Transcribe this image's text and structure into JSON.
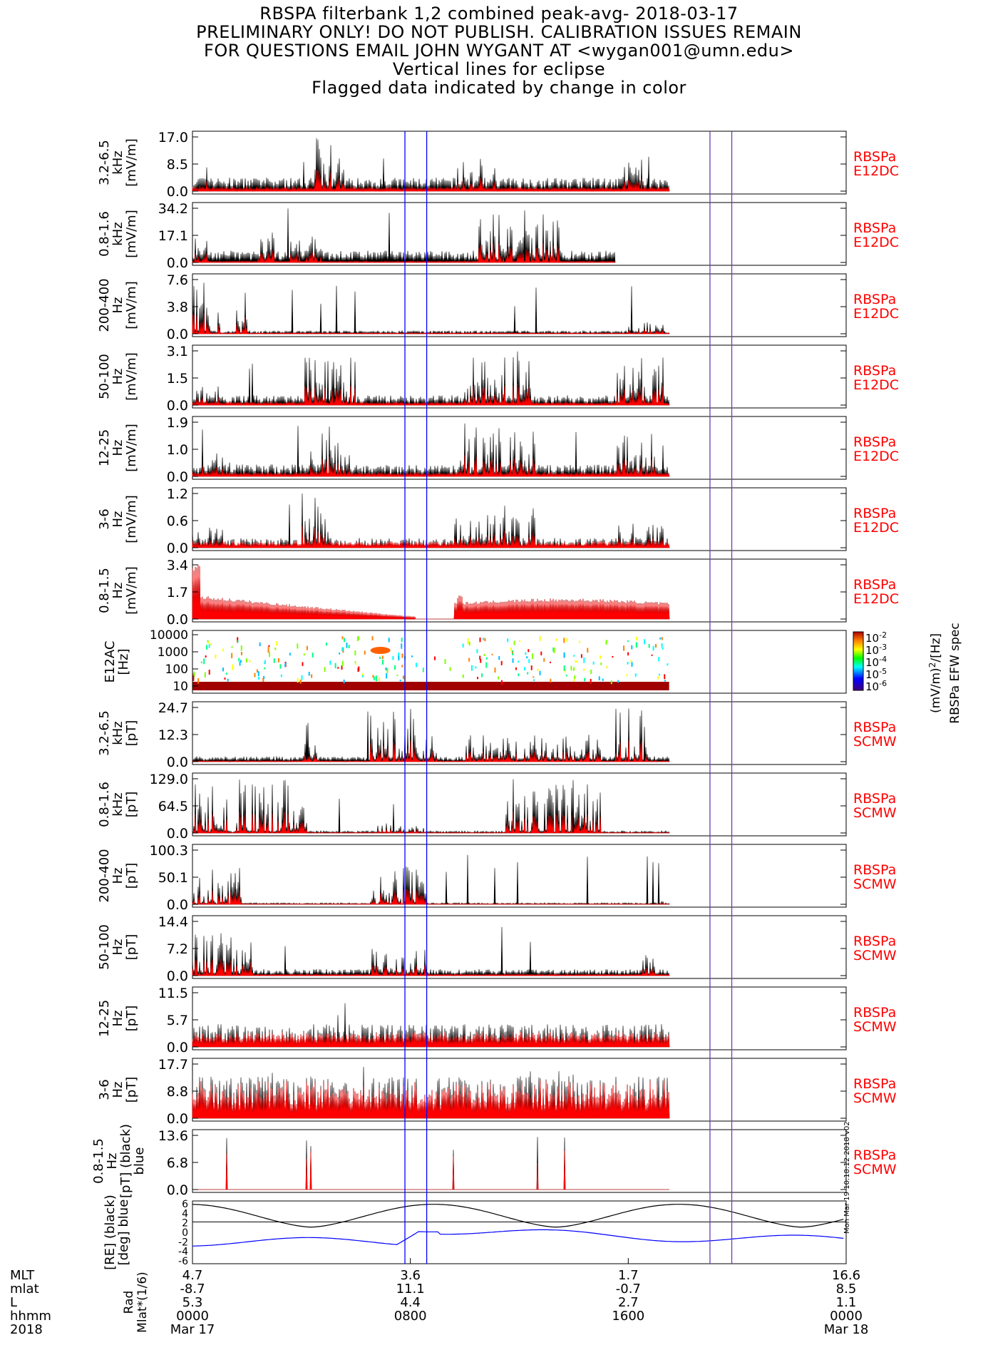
{
  "title_lines": [
    "RBSPA filterbank 1,2 combined peak-avg- 2018-03-17",
    "PRELIMINARY ONLY! DO NOT PUBLISH. CALIBRATION ISSUES REMAIN",
    "FOR QUESTIONS EMAIL JOHN WYGANT AT <wygan001@umn.edu>",
    "Vertical lines for eclipse",
    "Flagged data indicated by change in color"
  ],
  "colors": {
    "peak": "#000000",
    "avg": "#ff0000",
    "eclipse": "#0000ff",
    "eclipse2": "#6a3fb0",
    "mlat": "#0000ff",
    "label": "#ff0000"
  },
  "chart_data": {
    "type": "line",
    "x_axis": {
      "tick_dates": [
        "Mar 17",
        "",
        "",
        "Mar 18"
      ],
      "tick_hhmm": [
        "0000",
        "0800",
        "1600",
        "0000"
      ],
      "tick_hours": [
        0,
        8,
        16,
        24
      ],
      "row_labels": [
        "MLT",
        "mlat",
        "L",
        "hhmm",
        "2018"
      ],
      "orbit_labels": [
        "Rad",
        "Mlat*(1/6)"
      ],
      "MLT": [
        "4.7",
        "3.6",
        "1.7",
        "16.6"
      ],
      "mlat": [
        "-8.7",
        "11.1",
        "-0.7",
        "8.5"
      ],
      "L": [
        "5.3",
        "4.4",
        "2.7",
        "1.1"
      ]
    },
    "eclipse_hours": [
      [
        7.8,
        8.6
      ],
      [
        19.0,
        19.8
      ]
    ],
    "data_end_hour": 17.5,
    "panels": [
      {
        "id": "e1",
        "ylabel": [
          "3.2-6.5",
          "kHz",
          "[mV/m]"
        ],
        "yticks": [
          "0.0",
          "8.5",
          "17.0"
        ],
        "ymax": 17.0,
        "instr": [
          "RBSPa",
          "E12DC"
        ],
        "peak_level": 0.25,
        "avg_level": 0.08,
        "bursts": [
          [
            0.2,
            0.7,
            0.5
          ],
          [
            4.5,
            5.6,
            1.0
          ],
          [
            9.6,
            11.2,
            0.6
          ],
          [
            15.8,
            16.5,
            0.6
          ]
        ],
        "end": 17.5
      },
      {
        "id": "e2",
        "ylabel": [
          "0.8-1.6",
          "kHz",
          "[mV/m]"
        ],
        "yticks": [
          "0.0",
          "17.1",
          "34.2"
        ],
        "ymax": 34.2,
        "instr": [
          "RBSPa",
          "E12DC"
        ],
        "peak_level": 0.22,
        "avg_level": 0.03,
        "bursts": [
          [
            0.0,
            0.6,
            0.9
          ],
          [
            2.4,
            3.0,
            0.6
          ],
          [
            3.6,
            4.8,
            0.6
          ],
          [
            10.5,
            13.5,
            1.0
          ]
        ],
        "end": 15.5
      },
      {
        "id": "e3",
        "ylabel": [
          "200-400",
          "Hz",
          "[mV/m]"
        ],
        "yticks": [
          "0.0",
          "3.8",
          "7.6"
        ],
        "ymax": 7.6,
        "instr": [
          "RBSPa",
          "E12DC"
        ],
        "peak_level": 0.06,
        "avg_level": 0.02,
        "bursts": [
          [
            0.0,
            1.0,
            1.0
          ],
          [
            1.6,
            2.0,
            0.8
          ],
          [
            16.0,
            17.3,
            0.25
          ]
        ],
        "end": 17.5
      },
      {
        "id": "e4",
        "ylabel": [
          "50-100",
          "Hz",
          "[mV/m]"
        ],
        "yticks": [
          "0.0",
          "1.5",
          "3.1"
        ],
        "ymax": 3.1,
        "instr": [
          "RBSPa",
          "E12DC"
        ],
        "peak_level": 0.18,
        "avg_level": 0.06,
        "bursts": [
          [
            0.0,
            1.0,
            0.4
          ],
          [
            4.0,
            6.0,
            0.9
          ],
          [
            9.9,
            12.5,
            1.0
          ],
          [
            15.5,
            17.3,
            0.9
          ]
        ],
        "end": 17.5
      },
      {
        "id": "e5",
        "ylabel": [
          "12-25",
          "Hz",
          "[mV/m]"
        ],
        "yticks": [
          "0.0",
          "1.0",
          "1.9"
        ],
        "ymax": 1.9,
        "instr": [
          "RBSPa",
          "E12DC"
        ],
        "peak_level": 0.22,
        "avg_level": 0.08,
        "bursts": [
          [
            0.0,
            1.5,
            0.5
          ],
          [
            4.0,
            5.8,
            1.0
          ],
          [
            9.8,
            12.6,
            1.0
          ],
          [
            15.5,
            17.0,
            0.8
          ]
        ],
        "end": 17.5
      },
      {
        "id": "e6",
        "ylabel": [
          "3-6",
          "Hz",
          "[mV/m]"
        ],
        "yticks": [
          "0.0",
          "0.6",
          "1.2"
        ],
        "ymax": 1.2,
        "instr": [
          "RBSPa",
          "E12DC"
        ],
        "peak_level": 0.18,
        "avg_level": 0.12,
        "bursts": [
          [
            0.0,
            1.2,
            0.4
          ],
          [
            4.0,
            5.0,
            1.0
          ],
          [
            9.6,
            12.6,
            0.8
          ],
          [
            15.5,
            17.3,
            0.5
          ]
        ],
        "end": 17.5
      },
      {
        "id": "e7",
        "ylabel": [
          "0.8-1.5",
          "Hz",
          "[mV/m]"
        ],
        "yticks": [
          "0.0",
          "1.7",
          "3.4"
        ],
        "ymax": 3.4,
        "instr": [
          "RBSPa",
          "E12DC"
        ],
        "envelope": true,
        "end": 17.5
      },
      {
        "id": "spec",
        "type": "heatmap",
        "ylabel": [
          "E12AC",
          "[Hz]"
        ],
        "yticks": [
          "10",
          "100",
          "1000",
          "10000"
        ],
        "colorbar_ticks": [
          "10",
          "10",
          "10",
          "10",
          "10"
        ],
        "colorbar_exps": [
          "-2",
          "-3",
          "-4",
          "-5",
          "-6"
        ],
        "colorbar_label": "(mV/m)",
        "colorbar_label_sup": "2",
        "colorbar_label_tail": "/[Hz]",
        "side_label": "RBSPa EFW spec",
        "end": 17.5
      },
      {
        "id": "b1",
        "ylabel": [
          "3.2-6.5",
          "kHz",
          "[pT]"
        ],
        "yticks": [
          "0.0",
          "12.3",
          "24.7"
        ],
        "ymax": 24.7,
        "instr": [
          "RBSPa",
          "SCMW"
        ],
        "peak_level": 0.1,
        "avg_level": 0.02,
        "bursts": [
          [
            4.0,
            4.7,
            0.4
          ],
          [
            6.5,
            9.0,
            1.0
          ],
          [
            10.0,
            15.0,
            0.5
          ],
          [
            15.5,
            16.7,
            1.0
          ]
        ],
        "end": 17.5
      },
      {
        "id": "b2",
        "ylabel": [
          "0.8-1.6",
          "kHz",
          "[pT]"
        ],
        "yticks": [
          "0.0",
          "64.5",
          "129.0"
        ],
        "ymax": 129.0,
        "instr": [
          "RBSPa",
          "SCMW"
        ],
        "peak_level": 0.04,
        "avg_level": 0.01,
        "bursts": [
          [
            0.0,
            4.2,
            1.0
          ],
          [
            6.5,
            8.6,
            0.2
          ],
          [
            11.5,
            15.0,
            1.0
          ]
        ],
        "end": 17.5
      },
      {
        "id": "b3",
        "ylabel": [
          "200-400",
          "Hz",
          "[pT]"
        ],
        "yticks": [
          "0.0",
          "50.1",
          "100.3"
        ],
        "ymax": 100.3,
        "instr": [
          "RBSPa",
          "SCMW"
        ],
        "peak_level": 0.03,
        "avg_level": 0.01,
        "bursts": [
          [
            0.0,
            1.8,
            1.0
          ],
          [
            6.5,
            8.6,
            0.7
          ],
          [
            17.0,
            17.5,
            0.15
          ]
        ],
        "end": 17.5
      },
      {
        "id": "b4",
        "ylabel": [
          "50-100",
          "Hz",
          "[pT]"
        ],
        "yticks": [
          "0.0",
          "7.2",
          "14.4"
        ],
        "ymax": 14.4,
        "instr": [
          "RBSPa",
          "SCMW"
        ],
        "peak_level": 0.12,
        "avg_level": 0.03,
        "bursts": [
          [
            0.0,
            2.2,
            0.8
          ],
          [
            6.5,
            8.6,
            0.5
          ],
          [
            16.5,
            17.0,
            0.6
          ]
        ],
        "end": 17.5
      },
      {
        "id": "b5",
        "ylabel": [
          "12-25",
          "Hz",
          "[pT]"
        ],
        "yticks": [
          "0.0",
          "5.7",
          "11.5"
        ],
        "ymax": 11.5,
        "instr": [
          "RBSPa",
          "SCMW"
        ],
        "peak_level": 0.42,
        "avg_level": 0.28,
        "bursts": [],
        "end": 17.5
      },
      {
        "id": "b6",
        "ylabel": [
          "3-6",
          "Hz",
          "[pT]"
        ],
        "yticks": [
          "0.0",
          "8.8",
          "17.7"
        ],
        "ymax": 17.7,
        "instr": [
          "RBSPa",
          "SCMW"
        ],
        "peak_level": 0.78,
        "avg_level": 0.7,
        "bursts": [],
        "end": 17.5
      },
      {
        "id": "b7",
        "ylabel": [
          "0.8-1.5",
          "Hz",
          "[pT] (black)",
          "blue"
        ],
        "yticks": [
          "0.0",
          "6.8",
          "13.6"
        ],
        "ymax": 13.6,
        "instr": [
          "RBSPa",
          "SCMW"
        ],
        "peak_level": 0.0,
        "avg_level": 0.72,
        "bursts": [],
        "end": 17.5
      },
      {
        "id": "orbit",
        "type": "orbit",
        "ylabel": [
          "[RE] (black)",
          "[deg] blue"
        ],
        "yticks": [
          "-6",
          "-4",
          "-2",
          "0",
          "2",
          "4",
          "6"
        ],
        "end": 24
      }
    ]
  },
  "stamp": "Mon Mar 19 10:18:12 2018 v02"
}
